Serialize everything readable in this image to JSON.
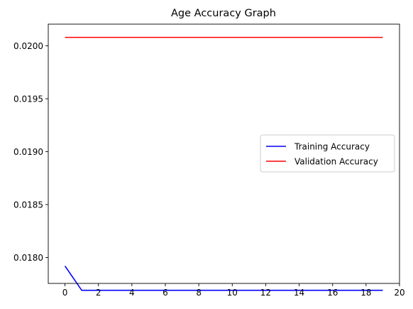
{
  "chart_data": {
    "type": "line",
    "title": "Age Accuracy Graph",
    "xlabel": "",
    "ylabel": "",
    "xlim": [
      -1.0,
      20.0
    ],
    "ylim": [
      0.017755,
      0.020205
    ],
    "xticks": [
      0,
      2,
      4,
      6,
      8,
      10,
      12,
      14,
      16,
      18,
      20
    ],
    "xtick_labels": [
      "0",
      "2",
      "4",
      "6",
      "8",
      "10",
      "12",
      "14",
      "16",
      "18",
      "20"
    ],
    "yticks": [
      0.018,
      0.0185,
      0.019,
      0.0195,
      0.02
    ],
    "ytick_labels": [
      "0.0180",
      "0.0185",
      "0.0190",
      "0.0195",
      "0.0200"
    ],
    "grid": false,
    "legend_position": "center-right",
    "x": [
      0,
      1,
      2,
      3,
      4,
      5,
      6,
      7,
      8,
      9,
      10,
      11,
      12,
      13,
      14,
      15,
      16,
      17,
      18,
      19
    ],
    "series": [
      {
        "name": "Training Accuracy",
        "color": "#0000ff",
        "values": [
          0.01792,
          0.01769,
          0.01769,
          0.01769,
          0.01769,
          0.01769,
          0.01769,
          0.01769,
          0.01769,
          0.01769,
          0.01769,
          0.01769,
          0.01769,
          0.01769,
          0.01769,
          0.01769,
          0.01769,
          0.01769,
          0.01769,
          0.01769
        ]
      },
      {
        "name": "Validation Accuracy",
        "color": "#ff0000",
        "values": [
          0.02008,
          0.02008,
          0.02008,
          0.02008,
          0.02008,
          0.02008,
          0.02008,
          0.02008,
          0.02008,
          0.02008,
          0.02008,
          0.02008,
          0.02008,
          0.02008,
          0.02008,
          0.02008,
          0.02008,
          0.02008,
          0.02008,
          0.02008
        ]
      }
    ]
  }
}
